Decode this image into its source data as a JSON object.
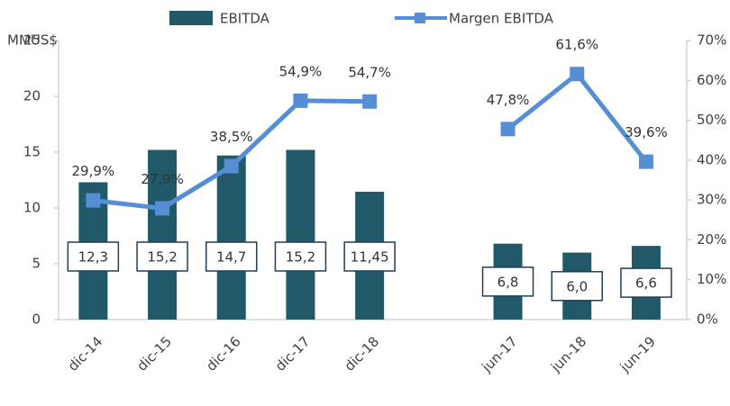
{
  "chart_data": {
    "type": "bar-line",
    "y_label": "MMUS$",
    "categories": [
      "dic-14",
      "dic-15",
      "dic-16",
      "dic-17",
      "dic-18",
      null,
      "jun-17",
      "jun-18",
      "jun-19"
    ],
    "series": [
      {
        "name": "EBITDA",
        "type": "bar",
        "color": "#215968",
        "values": [
          12.3,
          15.2,
          14.7,
          15.2,
          11.45,
          null,
          6.8,
          6.0,
          6.6
        ],
        "value_labels": [
          "12,3",
          "15,2",
          "14,7",
          "15,2",
          "11,45",
          null,
          "6,8",
          "6,0",
          "6,6"
        ]
      },
      {
        "name": "Margen EBITDA",
        "type": "line",
        "axis": "y2",
        "color": "#558ed5",
        "values": [
          29.9,
          27.9,
          38.5,
          54.9,
          54.7,
          null,
          47.8,
          61.6,
          39.6
        ],
        "value_labels": [
          "29,9%",
          "27,9%",
          "38,5%",
          "54,9%",
          "54,7%",
          null,
          "47,8%",
          "61,6%",
          "39,6%"
        ]
      }
    ],
    "ylim": [
      0,
      25
    ],
    "yticks": [
      0,
      5,
      10,
      15,
      20,
      25
    ],
    "y2lim": [
      0,
      70
    ],
    "y2ticks": [
      {
        "value": 0,
        "label": "0%"
      },
      {
        "value": 10,
        "label": "10%"
      },
      {
        "value": 20,
        "label": "20%"
      },
      {
        "value": 30,
        "label": "30%"
      },
      {
        "value": 40,
        "label": "40%"
      },
      {
        "value": 50,
        "label": "50%"
      },
      {
        "value": 60,
        "label": "60%"
      },
      {
        "value": 70,
        "label": "70%"
      }
    ],
    "legend": "top"
  }
}
